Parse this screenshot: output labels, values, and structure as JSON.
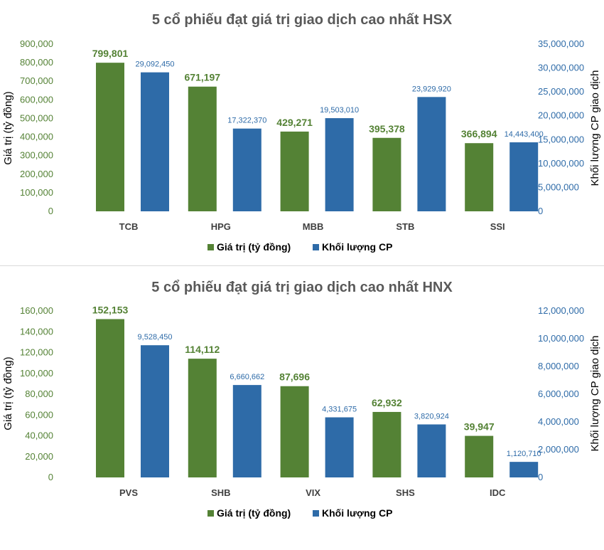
{
  "colors": {
    "green": "#548235",
    "blue": "#2E6BA8",
    "green_label": "#548235",
    "blue_label": "#2E6BA8",
    "separator": "#d9d9d9"
  },
  "chart_data": [
    {
      "type": "bar",
      "title": "5 cổ phiếu đạt giá trị giao dịch cao nhất HSX",
      "categories": [
        "TCB",
        "HPG",
        "MBB",
        "STB",
        "SSI"
      ],
      "ylabel": "Giá trị (tỷ đồng)",
      "y2label": "Khối lượng CP giao dịch",
      "ylim": [
        0,
        900000
      ],
      "y2lim": [
        0,
        35000000
      ],
      "yticks": [
        "0",
        "100,000",
        "200,000",
        "300,000",
        "400,000",
        "500,000",
        "600,000",
        "700,000",
        "800,000",
        "900,000"
      ],
      "y2ticks": [
        "0",
        "5,000,000",
        "10,000,000",
        "15,000,000",
        "20,000,000",
        "25,000,000",
        "30,000,000",
        "35,000,000"
      ],
      "series": [
        {
          "name": "Giá trị (tỷ đồng)",
          "axis": "left",
          "values": [
            799801,
            671197,
            429271,
            395378,
            366894
          ],
          "labels": [
            "799,801",
            "671,197",
            "429,271",
            "395,378",
            "366,894"
          ]
        },
        {
          "name": "Khối lượng CP",
          "axis": "right",
          "values": [
            29092450,
            17322370,
            19503010,
            23929920,
            14443400
          ],
          "labels": [
            "29,092,450",
            "17,322,370",
            "19,503,010",
            "23,929,920",
            "14,443,400"
          ]
        }
      ],
      "legend": [
        "Giá trị (tỷ đồng)",
        "Khối lượng CP"
      ]
    },
    {
      "type": "bar",
      "title": "5 cổ phiếu đạt giá trị giao dịch cao nhất HNX",
      "categories": [
        "PVS",
        "SHB",
        "VIX",
        "SHS",
        "IDC"
      ],
      "ylabel": "Giá trị (tỷ đồng)",
      "y2label": "Khối lượng CP giao dịch",
      "ylim": [
        0,
        160000
      ],
      "y2lim": [
        0,
        12000000
      ],
      "yticks": [
        "0",
        "20,000",
        "40,000",
        "60,000",
        "80,000",
        "100,000",
        "120,000",
        "140,000",
        "160,000"
      ],
      "y2ticks": [
        "0",
        "2,000,000",
        "4,000,000",
        "6,000,000",
        "8,000,000",
        "10,000,000",
        "12,000,000"
      ],
      "series": [
        {
          "name": "Giá trị (tỷ đồng)",
          "axis": "left",
          "values": [
            152153,
            114112,
            87696,
            62932,
            39947
          ],
          "labels": [
            "152,153",
            "114,112",
            "87,696",
            "62,932",
            "39,947"
          ]
        },
        {
          "name": "Khối lượng CP",
          "axis": "right",
          "values": [
            9528450,
            6660662,
            4331675,
            3820924,
            1120710
          ],
          "labels": [
            "9,528,450",
            "6,660,662",
            "4,331,675",
            "3,820,924",
            "1,120,710"
          ]
        }
      ],
      "legend": [
        "Giá trị (tỷ đồng)",
        "Khối lượng CP"
      ]
    }
  ]
}
